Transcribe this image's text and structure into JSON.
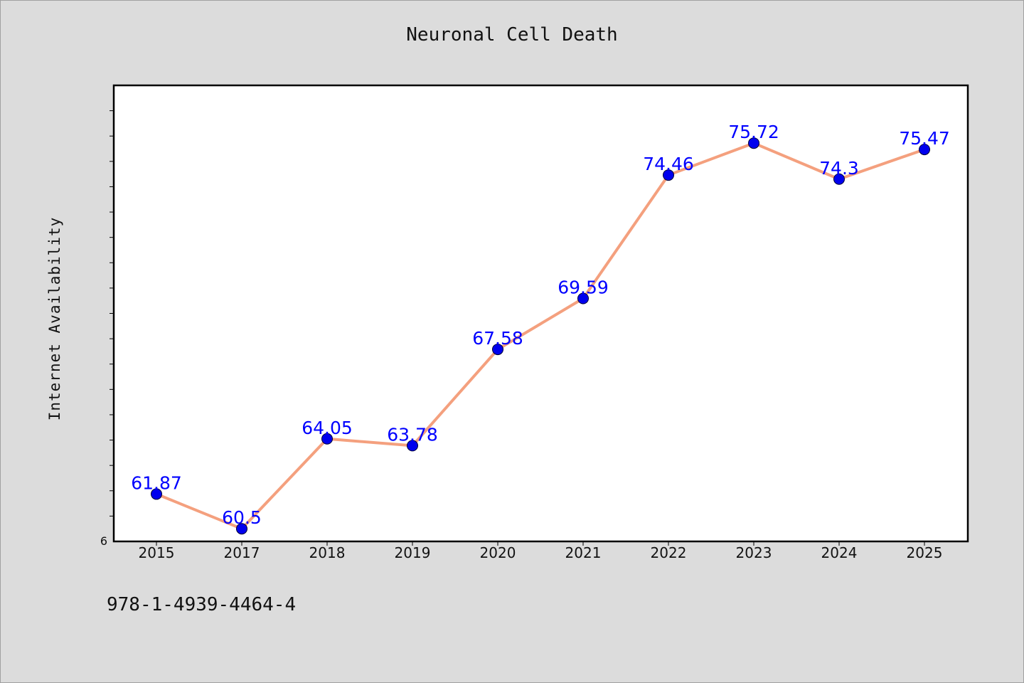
{
  "chart_data": {
    "type": "line",
    "title": "Neuronal Cell Death",
    "xlabel": "",
    "ylabel": "Internet Availability",
    "categories": [
      "2015",
      "2017",
      "2018",
      "2019",
      "2020",
      "2021",
      "2022",
      "2023",
      "2024",
      "2025"
    ],
    "series": [
      {
        "values": [
          61.87,
          60.5,
          64.05,
          63.78,
          67.58,
          69.59,
          74.46,
          75.72,
          74.3,
          75.47
        ],
        "labels": [
          "61.87",
          "60.5",
          "64.05",
          "63.78",
          "67.58",
          "69.59",
          "74.46",
          "75.72",
          "74.3",
          "75.47"
        ]
      }
    ],
    "ylim": [
      60,
      78
    ],
    "y_min_label": "6",
    "grid": false,
    "legend": "none",
    "colors": {
      "line": "#f4a07e",
      "marker": "#0000ee",
      "label": "#0000ff",
      "background": "#dcdcdc",
      "plot_background": "#ffffff"
    }
  },
  "footnote": "978-1-4939-4464-4"
}
